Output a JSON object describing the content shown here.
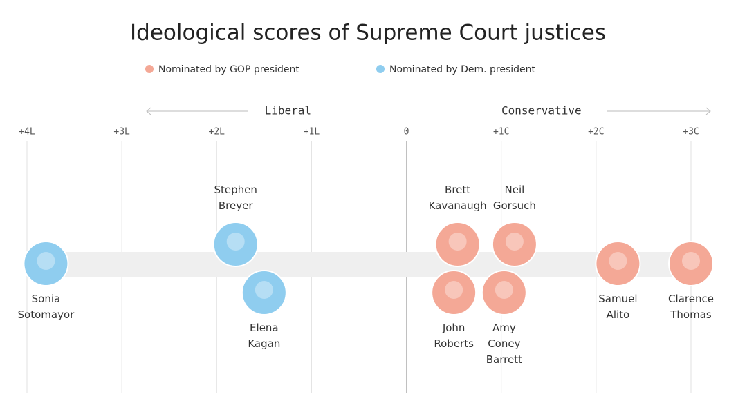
{
  "chart_data": {
    "type": "dot",
    "title": "Ideological scores of Supreme Court justices",
    "annotations": [
      "Liberal",
      "Conservative"
    ],
    "xlim": [
      -4,
      3
    ],
    "xticks": [
      {
        "value": -4,
        "label": "+4L"
      },
      {
        "value": -3,
        "label": "+3L"
      },
      {
        "value": -2,
        "label": "+2L"
      },
      {
        "value": -1,
        "label": "+1L"
      },
      0,
      {
        "value": 1,
        "label": "+1C"
      },
      {
        "value": 2,
        "label": "+2C"
      },
      {
        "value": 3,
        "label": "+3C"
      }
    ],
    "grid": true,
    "series": [
      {
        "name": "Nominated by GOP president",
        "color": "#f4a896",
        "labels": [
          "Brett Kavanaugh",
          "Neil Gorsuch",
          "John Roberts",
          "Amy Coney Barrett",
          "Samuel Alito",
          "Clarence Thomas"
        ],
        "x": [
          0.54,
          1.14,
          0.5,
          1.03,
          2.23,
          3.0
        ]
      },
      {
        "name": "Nominated by Dem. president",
        "color": "#8fcdef",
        "labels": [
          "Sonia Sotomayor",
          "Stephen Breyer",
          "Elena Kagan"
        ],
        "x": [
          -3.8,
          -1.8,
          -1.5
        ]
      }
    ]
  }
}
